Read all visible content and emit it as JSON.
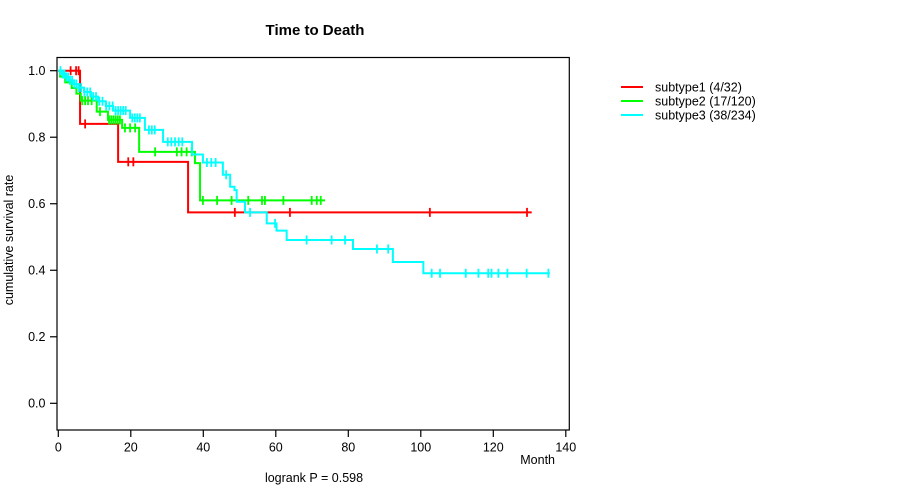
{
  "chart_data": {
    "type": "line",
    "variant": "kaplan-meier-step",
    "title": "Time to Death",
    "xlabel": "Month",
    "ylabel": "cumulative survival rate",
    "annotation": "logrank P = 0.598",
    "xlim": [
      0,
      140
    ],
    "ylim": [
      0,
      1
    ],
    "grid": false,
    "legend_position": "right-outside",
    "xticks": [
      "0",
      "20",
      "40",
      "60",
      "80",
      "100",
      "120",
      "140"
    ],
    "yticks": [
      "0.0",
      "0.2",
      "0.4",
      "0.6",
      "0.8",
      "1.0"
    ],
    "series": [
      {
        "name": "subtype1 (4/32)",
        "color": "#ff0000",
        "end": 130.6,
        "steps": [
          [
            0,
            1.0
          ],
          [
            6.0,
            0.84
          ],
          [
            16.5,
            0.726
          ],
          [
            35.8,
            0.574
          ]
        ],
        "censor": [
          3.4,
          4.9,
          5.6,
          7.4,
          19.3,
          20.7,
          48.7,
          63.9,
          102.5,
          129.3
        ]
      },
      {
        "name": "subtype2 (17/120)",
        "color": "#00ff00",
        "end": 73.6,
        "steps": [
          [
            0,
            1.0
          ],
          [
            0.5,
            0.982
          ],
          [
            1.9,
            0.965
          ],
          [
            3.7,
            0.948
          ],
          [
            5.0,
            0.931
          ],
          [
            6.2,
            0.91
          ],
          [
            10.6,
            0.877
          ],
          [
            13.7,
            0.852
          ],
          [
            17.6,
            0.828
          ],
          [
            22.3,
            0.756
          ],
          [
            37.7,
            0.722
          ],
          [
            39.1,
            0.61
          ]
        ],
        "censor": [
          6.6,
          7.4,
          8.2,
          9.2,
          11.5,
          14.0,
          14.6,
          15.2,
          15.8,
          16.4,
          17.0,
          18.4,
          19.8,
          21.2,
          26.7,
          32.7,
          34.0,
          35.4,
          36.8,
          39.9,
          43.8,
          47.8,
          52.4,
          56.2,
          57.0,
          62.1,
          69.9,
          71.3,
          72.4
        ]
      },
      {
        "name": "subtype3 (38/234)",
        "color": "#00ffff",
        "end": 135.6,
        "steps": [
          [
            0,
            1.0
          ],
          [
            1.1,
            0.99
          ],
          [
            2.1,
            0.981
          ],
          [
            3.1,
            0.971
          ],
          [
            4.3,
            0.96
          ],
          [
            5.6,
            0.949
          ],
          [
            7.1,
            0.936
          ],
          [
            9.0,
            0.922
          ],
          [
            11.0,
            0.908
          ],
          [
            13.1,
            0.894
          ],
          [
            15.1,
            0.88
          ],
          [
            19.8,
            0.858
          ],
          [
            23.9,
            0.822
          ],
          [
            28.9,
            0.786
          ],
          [
            36.9,
            0.748
          ],
          [
            39.9,
            0.724
          ],
          [
            45.4,
            0.687
          ],
          [
            47.4,
            0.651
          ],
          [
            48.6,
            0.641
          ],
          [
            49.2,
            0.606
          ],
          [
            51.5,
            0.574
          ],
          [
            57.5,
            0.541
          ],
          [
            60.2,
            0.519
          ],
          [
            63.0,
            0.491
          ],
          [
            81.3,
            0.464
          ],
          [
            92.3,
            0.425
          ],
          [
            100.7,
            0.391
          ]
        ],
        "censor": [
          0.6,
          1.2,
          1.7,
          2.2,
          2.7,
          3.2,
          3.8,
          4.4,
          5.0,
          5.7,
          6.3,
          7.2,
          8.0,
          8.8,
          9.6,
          10.4,
          11.3,
          12.2,
          13.2,
          14.1,
          15.0,
          15.8,
          16.5,
          17.2,
          17.9,
          18.6,
          20.4,
          21.1,
          21.8,
          22.5,
          25.0,
          25.8,
          26.6,
          30.2,
          31.2,
          32.2,
          33.2,
          34.2,
          41.0,
          42.2,
          43.4,
          46.3,
          52.9,
          59.8,
          68.5,
          75.4,
          79.1,
          87.9,
          91.0,
          103.0,
          105.3,
          112.4,
          115.9,
          118.6,
          119.5,
          121.4,
          123.9,
          129.2,
          135.2
        ]
      }
    ]
  }
}
